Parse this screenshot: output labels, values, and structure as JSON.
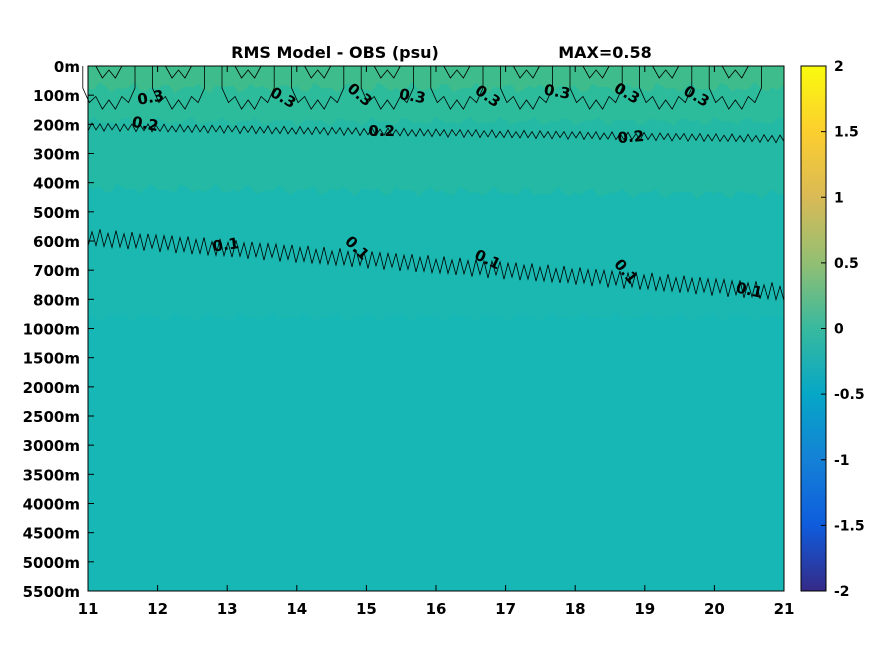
{
  "chart_data": {
    "type": "heatmap",
    "title": "RMS Model - OBS (psu)",
    "max_label": "MAX=0.58",
    "x": {
      "ticks": [
        "11",
        "12",
        "13",
        "14",
        "15",
        "16",
        "17",
        "18",
        "19",
        "20",
        "21"
      ],
      "range": [
        11,
        21
      ]
    },
    "y": {
      "ticks": [
        "0m",
        "100m",
        "200m",
        "300m",
        "400m",
        "500m",
        "600m",
        "700m",
        "800m",
        "1000m",
        "1500m",
        "2000m",
        "2500m",
        "3000m",
        "3500m",
        "4000m",
        "4500m",
        "5000m",
        "5500m"
      ],
      "order": "top-to-bottom"
    },
    "colorbar": {
      "range": [
        -2,
        2
      ],
      "ticks": [
        "2",
        "1.5",
        "1",
        "0.5",
        "0",
        "-0.5",
        "-1",
        "-1.5",
        "-2"
      ],
      "colormap": "parula",
      "stops": [
        "#352a87",
        "#0f5cdd",
        "#1481d6",
        "#06a7c6",
        "#38b99e",
        "#92bf73",
        "#d9ba56",
        "#fcce2e",
        "#f9fb0e"
      ]
    },
    "contour_levels": [
      "0.1",
      "0.2",
      "0.3"
    ],
    "contour_labels": [
      {
        "text": "0.3",
        "x": 11.9,
        "depth_index": 1.1,
        "rotation": -10
      },
      {
        "text": "0.3",
        "x": 13.8,
        "depth_index": 1.1,
        "rotation": 30
      },
      {
        "text": "0.3",
        "x": 14.9,
        "depth_index": 1.0,
        "rotation": 40
      },
      {
        "text": "0.3",
        "x": 15.66,
        "depth_index": 1.05,
        "rotation": 10
      },
      {
        "text": "0.3",
        "x": 16.74,
        "depth_index": 1.05,
        "rotation": 35
      },
      {
        "text": "0.3",
        "x": 17.74,
        "depth_index": 0.9,
        "rotation": 10
      },
      {
        "text": "0.3",
        "x": 18.74,
        "depth_index": 0.95,
        "rotation": 30
      },
      {
        "text": "0.3",
        "x": 19.74,
        "depth_index": 1.05,
        "rotation": 30
      },
      {
        "text": "0.2",
        "x": 11.82,
        "depth_index": 2.0,
        "rotation": 10
      },
      {
        "text": "0.2",
        "x": 15.22,
        "depth_index": 2.25,
        "rotation": 0
      },
      {
        "text": "0.2",
        "x": 18.8,
        "depth_index": 2.45,
        "rotation": -5
      },
      {
        "text": "0.1",
        "x": 12.98,
        "depth_index": 6.15,
        "rotation": -8
      },
      {
        "text": "0.1",
        "x": 14.86,
        "depth_index": 6.25,
        "rotation": 45
      },
      {
        "text": "0.1",
        "x": 16.74,
        "depth_index": 6.65,
        "rotation": 25
      },
      {
        "text": "0.1",
        "x": 18.72,
        "depth_index": 7.05,
        "rotation": 50
      },
      {
        "text": "0.1",
        "x": 20.5,
        "depth_index": 7.7,
        "rotation": 12
      }
    ],
    "field_colors": {
      "surface": "#3fbc8b",
      "upper": "#2cbb9b",
      "mid": "#23b9a4",
      "deep": "#1ab8b0",
      "abyss": "#16b7b5"
    }
  }
}
